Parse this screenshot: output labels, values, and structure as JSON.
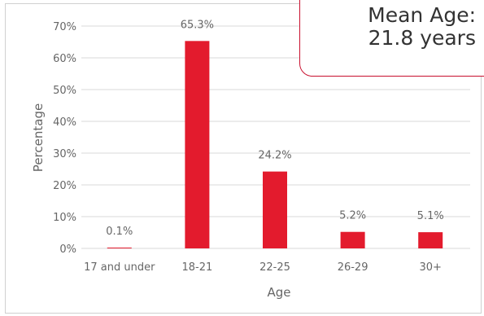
{
  "callout": {
    "line1": "Mean Age:",
    "line2": "21.8 years"
  },
  "chart_data": {
    "type": "bar",
    "categories": [
      "17 and under",
      "18-21",
      "22-25",
      "26-29",
      "30+"
    ],
    "values": [
      0.1,
      65.3,
      24.2,
      5.2,
      5.1
    ],
    "data_labels": [
      "0.1%",
      "65.3%",
      "24.2%",
      "5.2%",
      "5.1%"
    ],
    "xlabel": "Age",
    "ylabel": "Percentage",
    "ylim": [
      0,
      70
    ],
    "yticks": [
      "0%",
      "10%",
      "20%",
      "30%",
      "40%",
      "50%",
      "60%",
      "70%"
    ],
    "grid": true,
    "bar_color": "#e31b2d",
    "grid_color": "#d9d9d9"
  }
}
